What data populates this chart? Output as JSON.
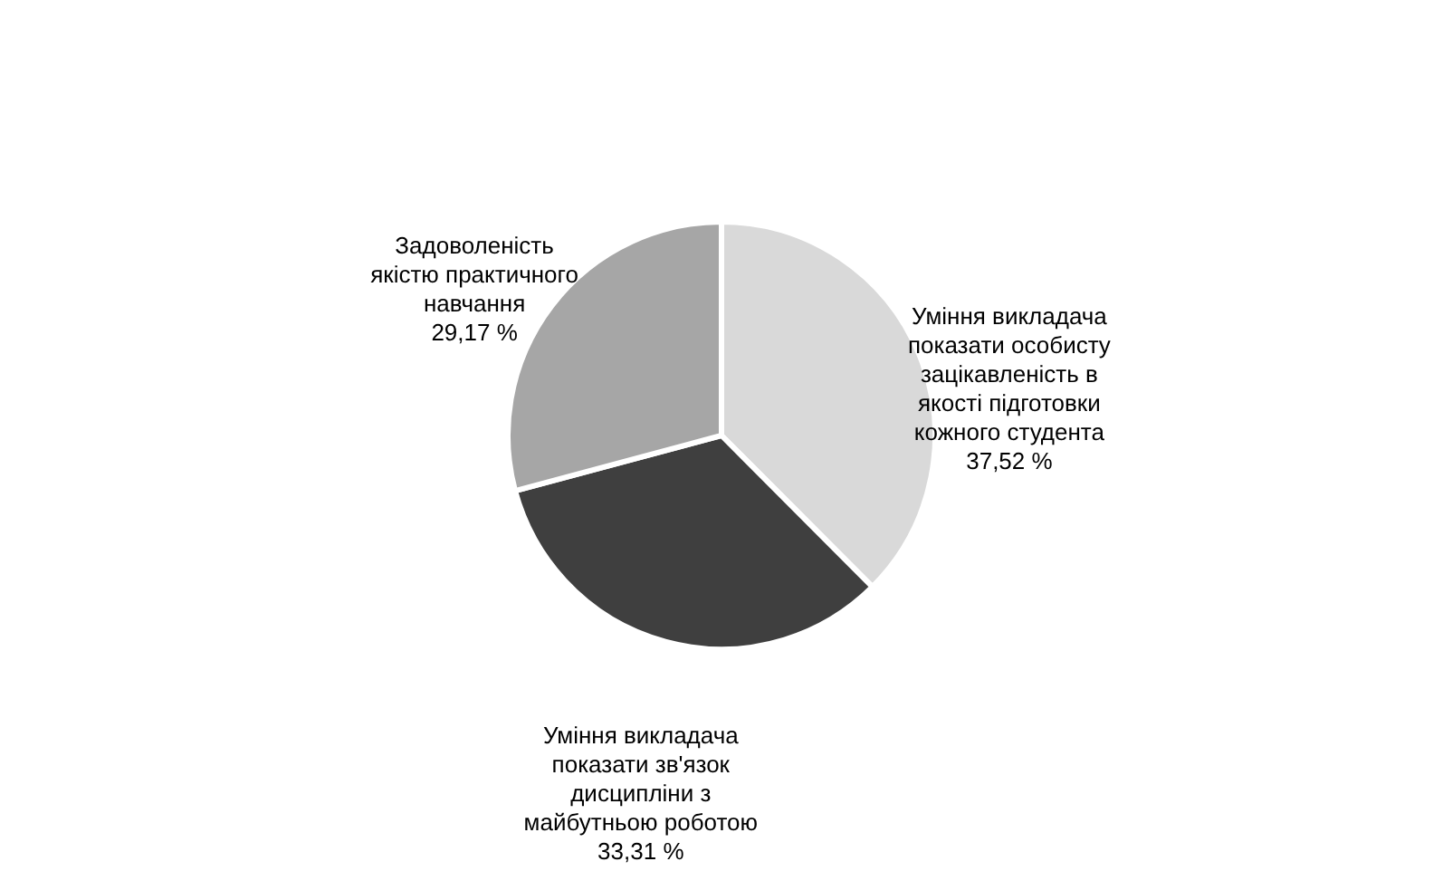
{
  "chart_data": {
    "type": "pie",
    "categories": [
      "Уміння викладача показати особисту зацікавленість в якості підготовки кожного студента",
      "Уміння викладача показати зв'язок дисципліни з майбутньою роботою",
      "Задоволеність якістю практичного навчання"
    ],
    "values": [
      37.52,
      33.31,
      29.17
    ],
    "value_labels": [
      "37,52 %",
      "33,31 %",
      "29,17 %"
    ],
    "colors": [
      "#d9d9d9",
      "#3f3f3f",
      "#a6a6a6"
    ],
    "legend": false
  }
}
